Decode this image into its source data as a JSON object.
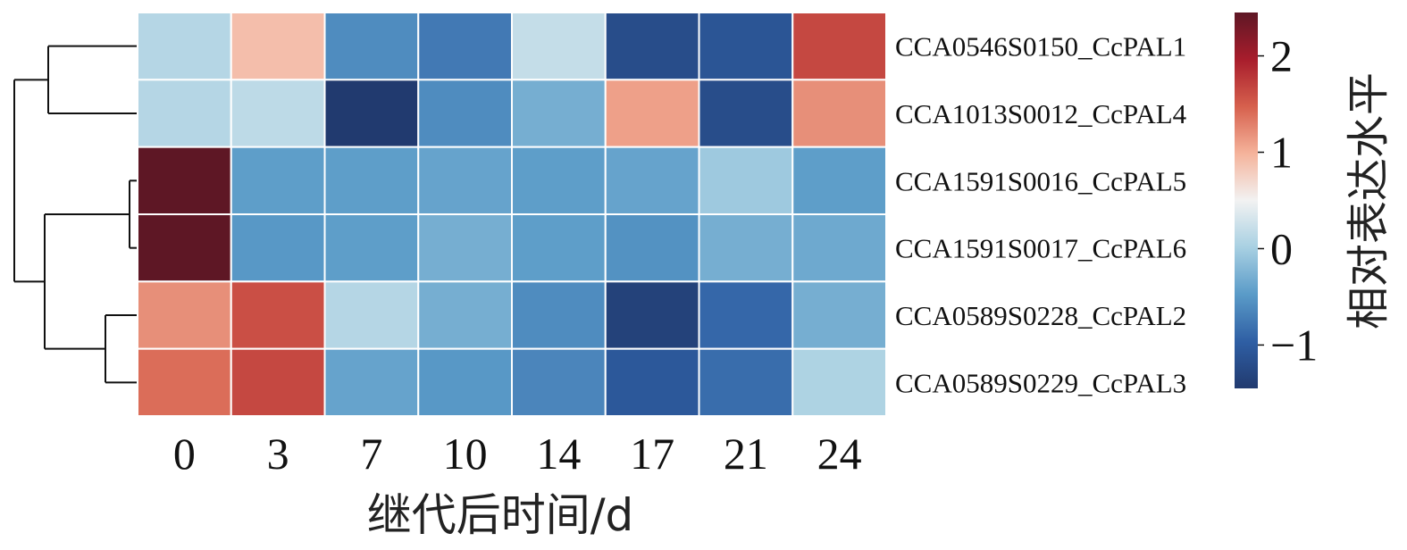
{
  "chart_data": {
    "type": "heatmap",
    "title": "",
    "xlabel": "继代后时间/d",
    "ylabel": "",
    "x_categories": [
      "0",
      "3",
      "7",
      "10",
      "14",
      "17",
      "21",
      "24"
    ],
    "y_categories": [
      "CCA0546S0150_CcPAL1",
      "CCA1013S0012_CcPAL4",
      "CCA1591S0016_CcPAL5",
      "CCA1591S0017_CcPAL6",
      "CCA0589S0228_CcPAL2",
      "CCA0589S0229_CcPAL3"
    ],
    "values": [
      [
        0.1,
        0.9,
        -0.6,
        -0.75,
        0.2,
        -1.2,
        -1.1,
        1.65
      ],
      [
        0.1,
        0.15,
        -1.55,
        -0.6,
        -0.3,
        1.1,
        -1.2,
        1.2
      ],
      [
        2.45,
        -0.45,
        -0.45,
        -0.4,
        -0.45,
        -0.4,
        -0.05,
        -0.45
      ],
      [
        2.45,
        -0.5,
        -0.45,
        -0.3,
        -0.45,
        -0.55,
        -0.3,
        -0.35
      ],
      [
        1.2,
        1.6,
        0.1,
        -0.3,
        -0.6,
        -1.35,
        -0.9,
        -0.3
      ],
      [
        1.4,
        1.65,
        -0.4,
        -0.5,
        -0.65,
        -1.05,
        -0.85,
        0.05
      ]
    ],
    "colorbar": {
      "label": "相对表达水平",
      "ticks": [
        -1,
        0,
        1,
        2
      ],
      "tick_labels": [
        "−1",
        "0",
        "1",
        "2"
      ],
      "range": [
        -1.45,
        2.45
      ]
    },
    "colormap": [
      "#213a6f",
      "#2f5fa4",
      "#5a9bc8",
      "#a8d0e2",
      "#f2f2f2",
      "#f5b39b",
      "#d6604d",
      "#a81d2c",
      "#5e1725"
    ],
    "dendrogram_side": "left",
    "grid": false,
    "cell_separator_color": "#ffffff"
  }
}
